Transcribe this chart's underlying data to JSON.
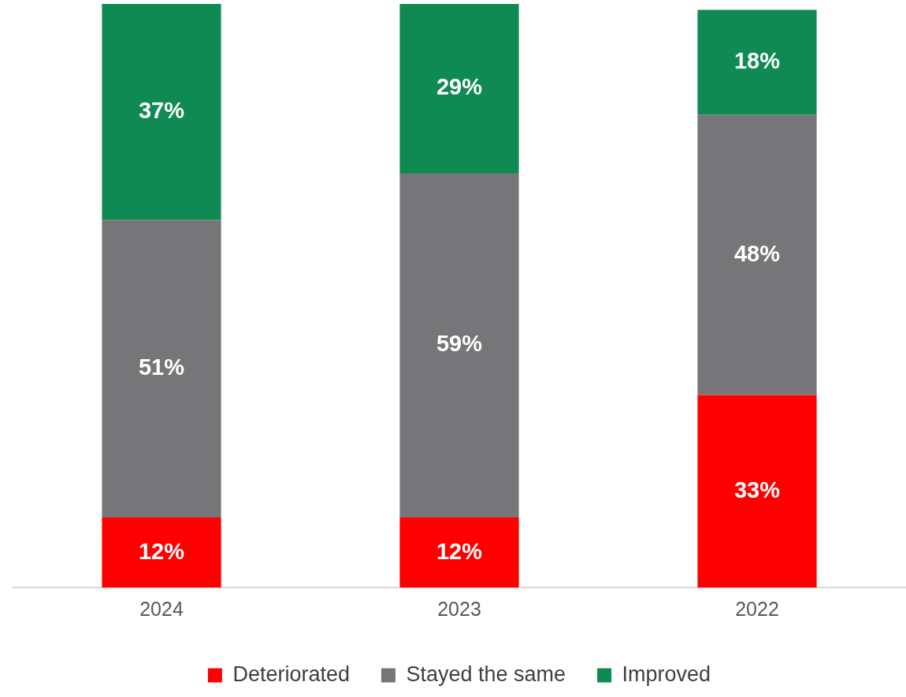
{
  "chart_data": {
    "type": "bar",
    "stacked": true,
    "categories": [
      "2024",
      "2023",
      "2022"
    ],
    "series": [
      {
        "name": "Deteriorated",
        "color": "#ff0000",
        "values": [
          12,
          12,
          33
        ],
        "value_labels": [
          "12%",
          "12%",
          "33%"
        ]
      },
      {
        "name": "Stayed the same",
        "color": "#767679",
        "values": [
          51,
          59,
          48
        ],
        "value_labels": [
          "51%",
          "59%",
          "48%"
        ]
      },
      {
        "name": "Improved",
        "color": "#0e8a52",
        "values": [
          37,
          29,
          18
        ],
        "value_labels": [
          "37%",
          "29%",
          "18%"
        ]
      }
    ],
    "legend": "bottom",
    "grid": false
  }
}
